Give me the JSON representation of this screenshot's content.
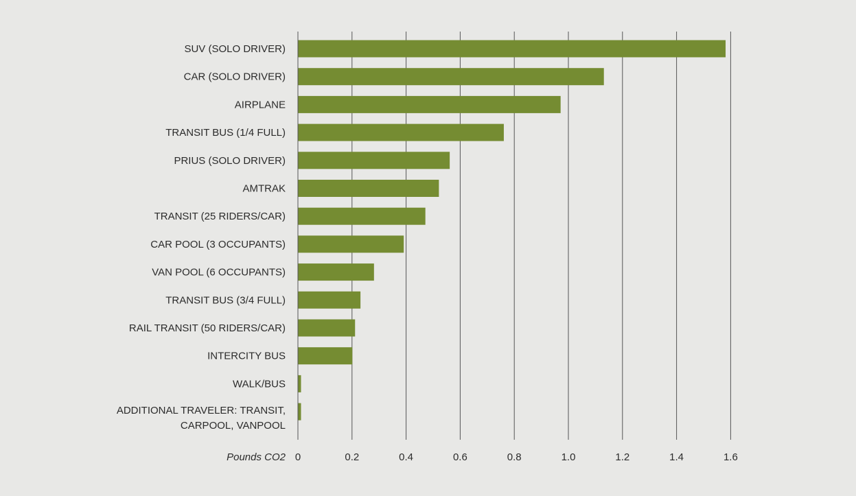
{
  "chart_data": {
    "type": "bar",
    "orientation": "horizontal",
    "categories": [
      "SUV (SOLO DRIVER)",
      "CAR (SOLO DRIVER)",
      "AIRPLANE",
      "TRANSIT BUS (1/4 FULL)",
      "PRIUS (SOLO DRIVER)",
      "AMTRAK",
      "TRANSIT (25 RIDERS/CAR)",
      "CAR POOL (3 OCCUPANTS)",
      "VAN POOL (6 OCCUPANTS)",
      "TRANSIT BUS (3/4 FULL)",
      "RAIL TRANSIT (50 RIDERS/CAR)",
      "INTERCITY BUS",
      "WALK/BUS",
      "ADDITIONAL TRAVELER: TRANSIT, CARPOOL, VANPOOL"
    ],
    "category_lines": [
      [
        "SUV (SOLO DRIVER)"
      ],
      [
        "CAR (SOLO DRIVER)"
      ],
      [
        "AIRPLANE"
      ],
      [
        "TRANSIT BUS (1/4 FULL)"
      ],
      [
        "PRIUS (SOLO DRIVER)"
      ],
      [
        "AMTRAK"
      ],
      [
        "TRANSIT (25 RIDERS/CAR)"
      ],
      [
        "CAR POOL (3 OCCUPANTS)"
      ],
      [
        "VAN POOL (6 OCCUPANTS)"
      ],
      [
        "TRANSIT BUS (3/4 FULL)"
      ],
      [
        "RAIL TRANSIT (50 RIDERS/CAR)"
      ],
      [
        "INTERCITY BUS"
      ],
      [
        "WALK/BUS"
      ],
      [
        "ADDITIONAL TRAVELER: TRANSIT,",
        "CARPOOL, VANPOOL"
      ]
    ],
    "values": [
      1.58,
      1.13,
      0.97,
      0.76,
      0.56,
      0.52,
      0.47,
      0.39,
      0.28,
      0.23,
      0.21,
      0.2,
      0.01,
      0.01
    ],
    "xticks": [
      0,
      0.2,
      0.4,
      0.6,
      0.8,
      1.0,
      1.2,
      1.4,
      1.6
    ],
    "xtick_labels": [
      "0",
      "0.2",
      "0.4",
      "0.6",
      "0.8",
      "1.0",
      "1.2",
      "1.4",
      "1.6"
    ],
    "xlim": [
      0,
      1.6
    ],
    "xlabel": "Pounds CO2",
    "ylabel": "",
    "title": "",
    "grid": true,
    "grid_axis": "x",
    "legend": false,
    "colors": {
      "bar": "#758c32",
      "background": "#e8e8e6",
      "grid": "#555555",
      "text": "#2b2b2b"
    }
  }
}
